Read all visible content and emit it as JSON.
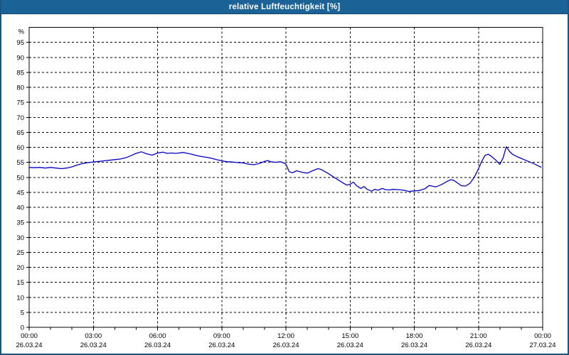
{
  "window": {
    "title": "relative Luftfeuchtigkeit [%]"
  },
  "colors": {
    "titlebar_bg": "#1B6296",
    "window_border": "#17567F",
    "plot_bg": "#FFFFFF",
    "grid": "#000000",
    "frame": "#000000",
    "tick_text": "#000000",
    "line": "#0000C8"
  },
  "chart_data": {
    "type": "line",
    "title": "relative Luftfeuchtigkeit [%]",
    "xlabel": "",
    "ylabel": "%",
    "ylim": [
      0,
      100
    ],
    "xlim_hours": [
      0,
      24
    ],
    "grid": "dashed",
    "legend_position": "none",
    "y_ticks": [
      0,
      5,
      10,
      15,
      20,
      25,
      30,
      35,
      40,
      45,
      50,
      55,
      60,
      65,
      70,
      75,
      80,
      85,
      90,
      95
    ],
    "y_gridlines": [
      5,
      10,
      15,
      20,
      25,
      30,
      35,
      40,
      45,
      50,
      55,
      60,
      65,
      70,
      75,
      80,
      85,
      90,
      95
    ],
    "x_gridline_hours": [
      3,
      6,
      9,
      12,
      15,
      18,
      21
    ],
    "x_minor_tick_every_hours": 1,
    "x_ticks": [
      {
        "hours": 0,
        "time": "00:00",
        "date": "26.03.24"
      },
      {
        "hours": 3,
        "time": "03:00",
        "date": "26.03.24"
      },
      {
        "hours": 6,
        "time": "06:00",
        "date": "26.03.24"
      },
      {
        "hours": 9,
        "time": "09:00",
        "date": "26.03.24"
      },
      {
        "hours": 12,
        "time": "12:00",
        "date": "26.03.24"
      },
      {
        "hours": 15,
        "time": "15:00",
        "date": "26.03.24"
      },
      {
        "hours": 18,
        "time": "18:00",
        "date": "26.03.24"
      },
      {
        "hours": 21,
        "time": "21:00",
        "date": "26.03.24"
      },
      {
        "hours": 24,
        "time": "00:00",
        "date": "27.03.24"
      }
    ],
    "series": [
      {
        "name": "relative Luftfeuchtigkeit",
        "unit": "%",
        "color": "#0000C8",
        "points": [
          [
            0.0,
            53.3
          ],
          [
            0.25,
            53.2
          ],
          [
            0.5,
            53.3
          ],
          [
            0.75,
            53.1
          ],
          [
            1.0,
            53.3
          ],
          [
            1.25,
            53.1
          ],
          [
            1.5,
            52.9
          ],
          [
            1.75,
            53.1
          ],
          [
            2.0,
            53.5
          ],
          [
            2.25,
            54.1
          ],
          [
            2.5,
            54.6
          ],
          [
            2.75,
            54.9
          ],
          [
            3.0,
            55.1
          ],
          [
            3.25,
            55.3
          ],
          [
            3.5,
            55.5
          ],
          [
            3.75,
            55.7
          ],
          [
            4.0,
            55.9
          ],
          [
            4.25,
            56.1
          ],
          [
            4.5,
            56.5
          ],
          [
            4.75,
            57.2
          ],
          [
            5.0,
            58.0
          ],
          [
            5.25,
            58.5
          ],
          [
            5.5,
            57.8
          ],
          [
            5.75,
            57.4
          ],
          [
            6.0,
            58.1
          ],
          [
            6.25,
            58.4
          ],
          [
            6.45,
            58.0
          ],
          [
            6.65,
            58.1
          ],
          [
            6.85,
            58.0
          ],
          [
            7.0,
            58.1
          ],
          [
            7.2,
            58.3
          ],
          [
            7.4,
            58.0
          ],
          [
            7.6,
            57.7
          ],
          [
            7.8,
            57.3
          ],
          [
            8.0,
            57.0
          ],
          [
            8.25,
            56.7
          ],
          [
            8.5,
            56.4
          ],
          [
            8.75,
            55.9
          ],
          [
            9.0,
            55.5
          ],
          [
            9.25,
            55.2
          ],
          [
            9.5,
            55.1
          ],
          [
            9.75,
            54.9
          ],
          [
            10.0,
            54.8
          ],
          [
            10.25,
            54.4
          ],
          [
            10.5,
            54.2
          ],
          [
            10.75,
            54.6
          ],
          [
            11.0,
            55.3
          ],
          [
            11.15,
            55.6
          ],
          [
            11.3,
            55.2
          ],
          [
            11.5,
            55.0
          ],
          [
            11.75,
            55.2
          ],
          [
            11.9,
            54.8
          ],
          [
            12.0,
            54.4
          ],
          [
            12.15,
            51.9
          ],
          [
            12.3,
            51.5
          ],
          [
            12.5,
            52.2
          ],
          [
            12.65,
            51.9
          ],
          [
            12.8,
            51.6
          ],
          [
            13.0,
            51.4
          ],
          [
            13.25,
            52.2
          ],
          [
            13.5,
            52.9
          ],
          [
            13.65,
            52.6
          ],
          [
            13.8,
            52.0
          ],
          [
            14.0,
            51.2
          ],
          [
            14.25,
            50.0
          ],
          [
            14.5,
            48.9
          ],
          [
            14.7,
            48.0
          ],
          [
            14.85,
            47.4
          ],
          [
            15.0,
            47.7
          ],
          [
            15.15,
            48.4
          ],
          [
            15.3,
            47.2
          ],
          [
            15.5,
            46.3
          ],
          [
            15.65,
            46.9
          ],
          [
            15.8,
            46.0
          ],
          [
            16.0,
            45.4
          ],
          [
            16.15,
            46.0
          ],
          [
            16.3,
            45.7
          ],
          [
            16.5,
            46.3
          ],
          [
            16.65,
            45.9
          ],
          [
            16.85,
            45.8
          ],
          [
            17.0,
            46.0
          ],
          [
            17.25,
            45.9
          ],
          [
            17.5,
            45.7
          ],
          [
            17.75,
            45.3
          ],
          [
            18.0,
            45.5
          ],
          [
            18.25,
            45.6
          ],
          [
            18.5,
            46.2
          ],
          [
            18.7,
            47.3
          ],
          [
            19.0,
            46.8
          ],
          [
            19.25,
            47.5
          ],
          [
            19.5,
            48.5
          ],
          [
            19.7,
            49.2
          ],
          [
            19.85,
            49.0
          ],
          [
            20.0,
            48.2
          ],
          [
            20.2,
            47.2
          ],
          [
            20.4,
            47.1
          ],
          [
            20.6,
            48.0
          ],
          [
            20.8,
            50.0
          ],
          [
            21.0,
            52.9
          ],
          [
            21.15,
            55.3
          ],
          [
            21.3,
            57.3
          ],
          [
            21.45,
            57.7
          ],
          [
            21.6,
            57.0
          ],
          [
            21.8,
            55.8
          ],
          [
            22.0,
            54.3
          ],
          [
            22.15,
            56.5
          ],
          [
            22.3,
            60.2
          ],
          [
            22.45,
            58.6
          ],
          [
            22.6,
            57.6
          ],
          [
            22.8,
            56.9
          ],
          [
            23.0,
            56.3
          ],
          [
            23.2,
            55.7
          ],
          [
            23.4,
            55.1
          ],
          [
            23.6,
            54.5
          ],
          [
            23.8,
            53.8
          ],
          [
            23.92,
            53.4
          ]
        ]
      }
    ]
  }
}
